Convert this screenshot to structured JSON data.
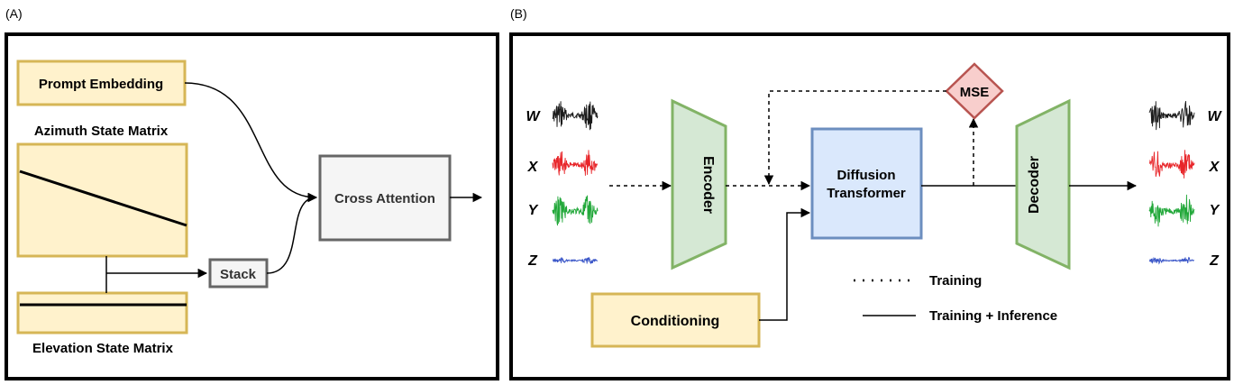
{
  "panels": {
    "a": {
      "tag": "(A)",
      "prompt_embedding": "Prompt Embedding",
      "azimuth_title": "Azimuth State Matrix",
      "elevation_title": "Elevation State Matrix",
      "stack": "Stack",
      "cross_attention": "Cross Attention"
    },
    "b": {
      "tag": "(B)",
      "encoder": "Encoder",
      "decoder": "Decoder",
      "diffusion_line1": "Diffusion",
      "diffusion_line2": "Transformer",
      "mse": "MSE",
      "conditioning": "Conditioning",
      "legend_training": "Training",
      "legend_training_inference": "Training + Inference",
      "channels_in": [
        "W",
        "X",
        "Y",
        "Z"
      ],
      "channels_out": [
        "W",
        "X",
        "Y",
        "Z"
      ]
    }
  },
  "colors": {
    "yellow_fill": "#fff2cc",
    "yellow_stroke": "#d6b656",
    "green_fill": "#d5e8d4",
    "green_stroke": "#82b366",
    "blue_fill": "#dae8fc",
    "blue_stroke": "#6c8ebf",
    "red_fill": "#f8cecc",
    "red_stroke": "#b85450",
    "gray_fill": "#f5f5f5",
    "gray_stroke": "#666666",
    "wave_w": "#1a1a1a",
    "wave_x": "#e8262a",
    "wave_y": "#22a83a",
    "wave_z": "#3a56c8"
  }
}
